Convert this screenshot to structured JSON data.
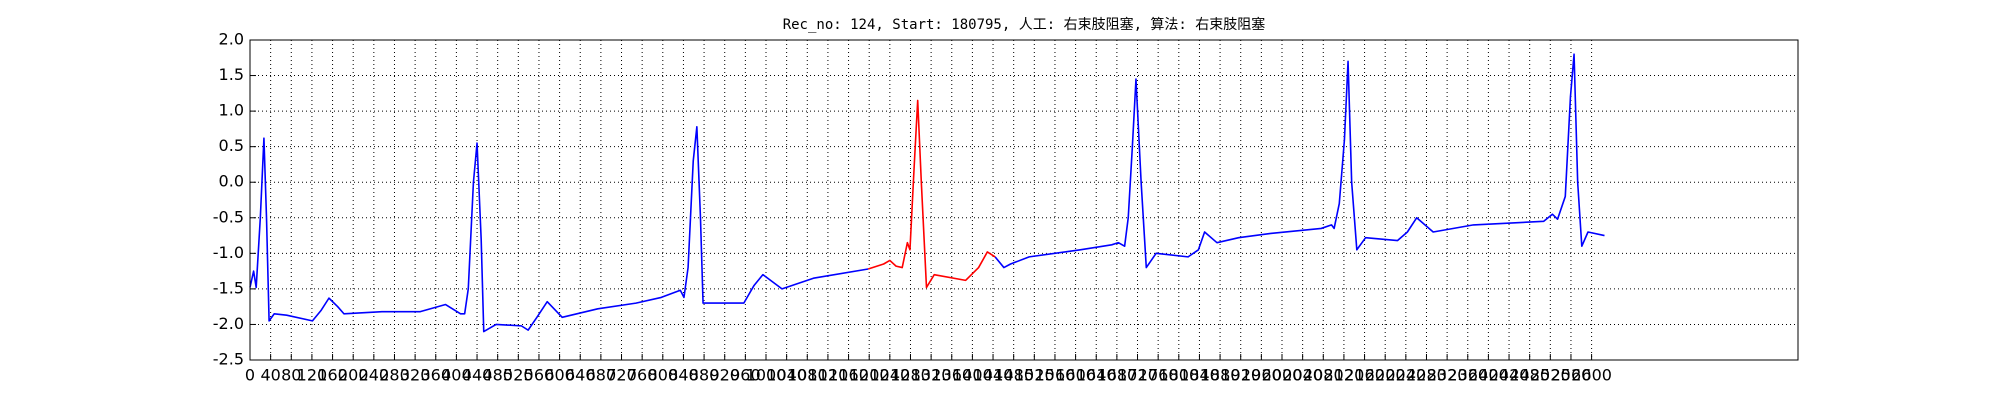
{
  "chart_data": {
    "type": "line",
    "title": "Rec_no: 124, Start: 180795, 人工: 右束肢阻塞, 算法: 右束肢阻塞",
    "x": [
      0,
      7,
      12,
      20,
      27,
      32,
      37,
      47,
      71,
      121,
      138,
      153,
      170,
      182,
      256,
      330,
      379,
      408,
      416,
      423,
      433,
      440,
      448,
      453,
      477,
      526,
      539,
      556,
      576,
      605,
      674,
      748,
      797,
      834,
      841,
      849,
      859,
      866,
      873,
      878,
      957,
      977,
      994,
      1031,
      1092,
      1198,
      1228,
      1240,
      1252,
      1264,
      1274,
      1279,
      1287,
      1294,
      1301,
      1311,
      1326,
      1387,
      1412,
      1429,
      1444,
      1461,
      1474,
      1510,
      1609,
      1670,
      1683,
      1695,
      1702,
      1710,
      1717,
      1727,
      1737,
      1756,
      1818,
      1838,
      1850,
      1874,
      1916,
      1978,
      2076,
      2096,
      2101,
      2111,
      2121,
      2128,
      2135,
      2145,
      2162,
      2224,
      2243,
      2261,
      2293,
      2371,
      2507,
      2524,
      2534,
      2549,
      2559,
      2566,
      2573,
      2581,
      2593,
      2625
    ],
    "series": [
      {
        "color": "#0000ff",
        "values": [
          -1.48,
          -1.25,
          -1.48,
          -0.5,
          0.62,
          -0.5,
          -1.95,
          -1.85,
          -1.87,
          -1.95,
          -1.8,
          -1.63,
          -1.75,
          -1.85,
          -1.82,
          -1.82,
          -1.72,
          -1.85,
          -1.85,
          -1.5,
          0.0,
          0.55,
          -0.8,
          -2.1,
          -2.0,
          -2.02,
          -2.08,
          -1.9,
          -1.68,
          -1.9,
          -1.78,
          -1.7,
          -1.62,
          -1.52,
          -1.62,
          -1.2,
          0.3,
          0.78,
          -0.5,
          -1.7,
          -1.7,
          -1.45,
          -1.3,
          -1.5,
          -1.35,
          -1.22,
          null,
          null,
          null,
          null,
          null,
          null,
          null,
          null,
          null,
          null,
          null,
          null,
          null,
          null,
          -1.05,
          -1.2,
          -1.15,
          -1.05,
          -0.95,
          -0.88,
          -0.85,
          -0.9,
          -0.5,
          0.5,
          1.45,
          0.0,
          -1.2,
          -1.0,
          -1.05,
          -0.95,
          -0.7,
          -0.85,
          -0.78,
          -0.72,
          -0.65,
          -0.6,
          -0.65,
          -0.3,
          0.6,
          1.7,
          0.0,
          -0.95,
          -0.78,
          -0.82,
          -0.7,
          -0.5,
          -0.7,
          -0.6,
          -0.55,
          -0.45,
          -0.52,
          -0.2,
          1.2,
          1.8,
          0.0,
          -0.9,
          -0.7,
          -0.75
        ]
      },
      {
        "color": "#ff0000",
        "values": [
          null,
          null,
          null,
          null,
          null,
          null,
          null,
          null,
          null,
          null,
          null,
          null,
          null,
          null,
          null,
          null,
          null,
          null,
          null,
          null,
          null,
          null,
          null,
          null,
          null,
          null,
          null,
          null,
          null,
          null,
          null,
          null,
          null,
          null,
          null,
          null,
          null,
          null,
          null,
          null,
          null,
          null,
          null,
          null,
          null,
          -1.22,
          -1.15,
          -1.1,
          -1.18,
          -1.2,
          -0.85,
          -0.95,
          0.2,
          1.15,
          0.0,
          -1.48,
          -1.3,
          -1.38,
          -1.2,
          -0.98,
          -1.05,
          null,
          null,
          null,
          null,
          null,
          null,
          null,
          null,
          null,
          null,
          null,
          null,
          null,
          null,
          null,
          null,
          null,
          null,
          null,
          null,
          null,
          null,
          null,
          null,
          null,
          null,
          null,
          null,
          null,
          null,
          null,
          null,
          null,
          null,
          null,
          null,
          null,
          null,
          null,
          null,
          null,
          null,
          null
        ]
      }
    ],
    "xlim": [
      0,
      3000
    ],
    "xticks": [
      0,
      40,
      80,
      120,
      160,
      200,
      240,
      280,
      320,
      360,
      400,
      440,
      480,
      520,
      560,
      600,
      640,
      680,
      720,
      760,
      800,
      840,
      880,
      920,
      960,
      1000,
      1040,
      1080,
      1120,
      1160,
      1200,
      1240,
      1280,
      1320,
      1360,
      1400,
      1440,
      1480,
      1520,
      1560,
      1600,
      1640,
      1680,
      1720,
      1760,
      1800,
      1840,
      1880,
      1920,
      1960,
      2000,
      2040,
      2080,
      2120,
      2160,
      2200,
      2240,
      2280,
      2320,
      2360,
      2400,
      2440,
      2480,
      2520,
      2560,
      2600
    ],
    "ylim": [
      -2.5,
      2.0
    ],
    "yticks": [
      -2.5,
      {
        "value": -2,
        "label": "-2.0"
      },
      -1.5,
      {
        "value": -1,
        "label": "-1.0"
      },
      -0.5,
      {
        "value": 0,
        "label": "0.0"
      },
      0.5,
      {
        "value": 1,
        "label": "1.0"
      },
      1.5,
      {
        "value": 2,
        "label": "2.0"
      }
    ],
    "grid": true
  }
}
